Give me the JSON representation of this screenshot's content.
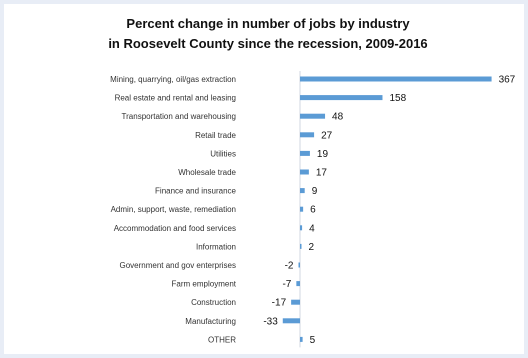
{
  "chart_data": {
    "type": "bar",
    "orientation": "horizontal",
    "title": "Percent change in number of jobs by industry",
    "subtitle": "in Roosevelt County since the recession, 2009-2016",
    "categories": [
      "Mining, quarrying, oil/gas extraction",
      "Real estate and rental and leasing",
      "Transportation and warehousing",
      "Retail trade",
      "Utilities",
      "Wholesale trade",
      "Finance and insurance",
      "Admin, support, waste, remediation",
      "Accommodation and food services",
      "Information",
      "Government and gov enterprises",
      "Farm employment",
      "Construction",
      "Manufacturing",
      "OTHER"
    ],
    "values": [
      367,
      158,
      48,
      27,
      19,
      17,
      9,
      6,
      4,
      2,
      -2,
      -7,
      -17,
      -33,
      5
    ],
    "bar_color": "#5b9bd5",
    "grid": false,
    "legend": "none"
  }
}
